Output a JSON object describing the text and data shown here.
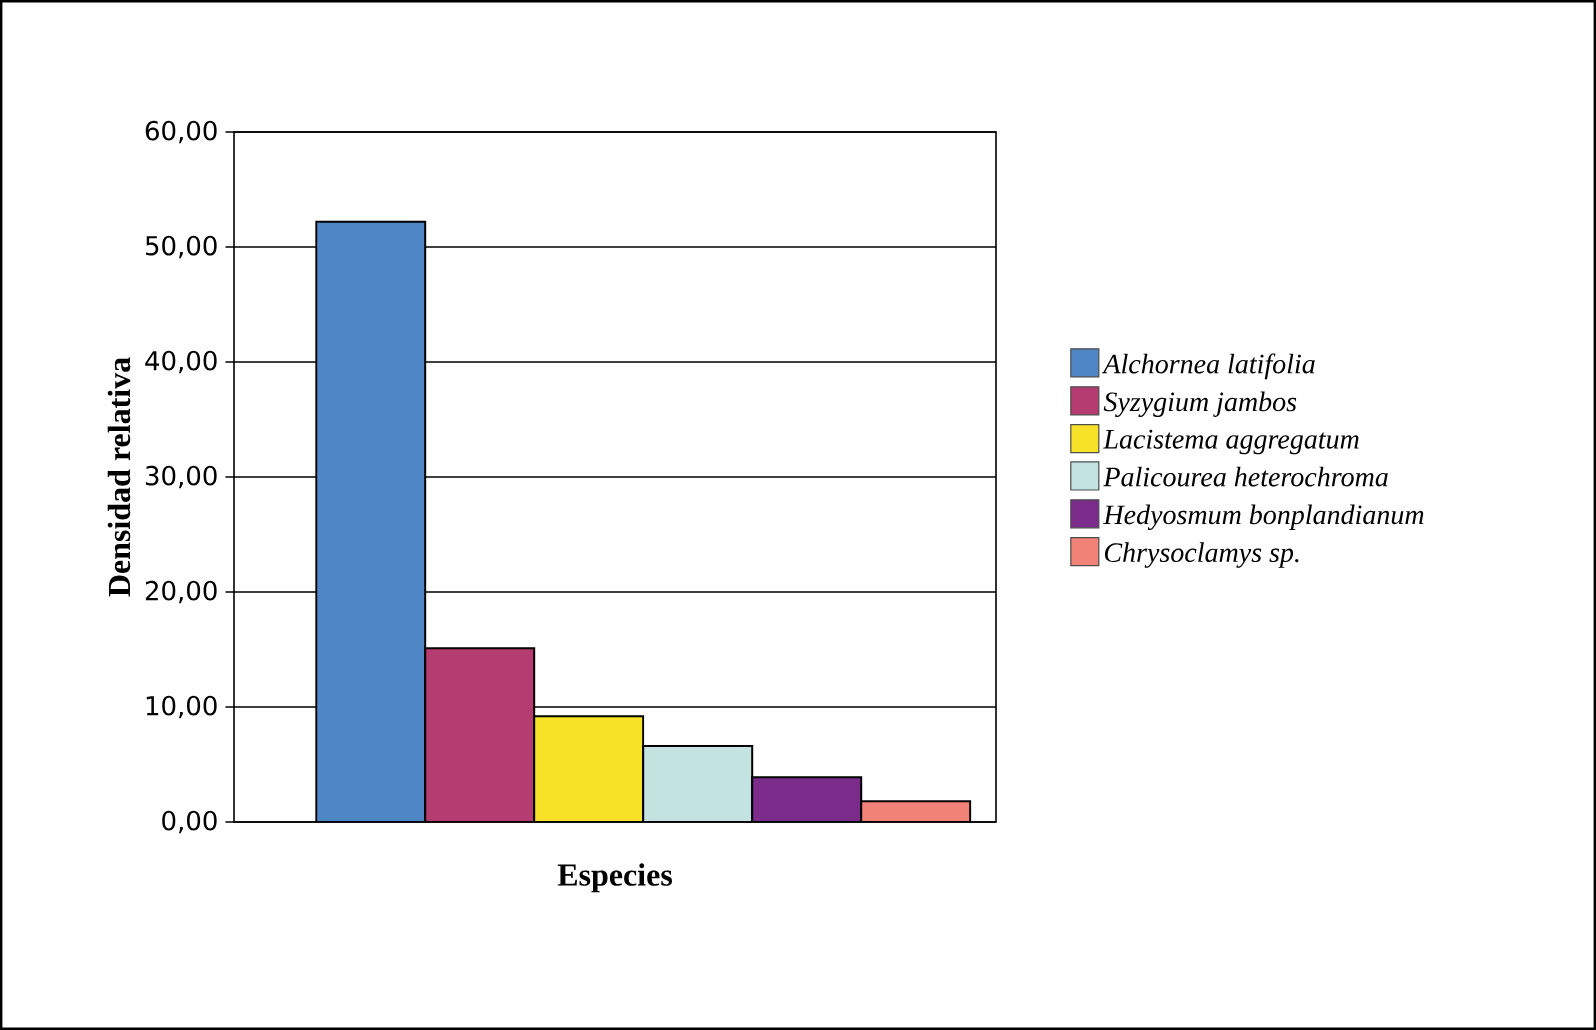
{
  "chart_data": {
    "type": "bar",
    "xlabel": "Especies",
    "ylabel": "Densidad relativa",
    "categories": [
      null
    ],
    "series": [
      {
        "name": "Alchornea latifolia",
        "color": "#4f86c6",
        "values": [
          52.2
        ]
      },
      {
        "name": "Syzygium jambos",
        "color": "#b43c70",
        "values": [
          15.1
        ]
      },
      {
        "name": "Lacistema aggregatum",
        "color": "#f8e228",
        "values": [
          9.2
        ]
      },
      {
        "name": "Palicourea heterochroma",
        "color": "#c3e3e0",
        "values": [
          6.6
        ]
      },
      {
        "name": "Hedyosmum bonplandianum",
        "color": "#7b2c8b",
        "values": [
          3.9
        ]
      },
      {
        "name": "Chrysoclamys sp.",
        "color": "#f08278",
        "values": [
          1.8
        ]
      }
    ],
    "ylim": [
      0,
      60
    ],
    "yticks": [
      {
        "value": 0,
        "label": "0,00"
      },
      {
        "value": 10,
        "label": "10,00"
      },
      {
        "value": 20,
        "label": "20,00"
      },
      {
        "value": 30,
        "label": "30,00"
      },
      {
        "value": 40,
        "label": "40,00"
      },
      {
        "value": 50,
        "label": "50,00"
      },
      {
        "value": 60,
        "label": "60,00"
      }
    ],
    "grid": "y",
    "legend": "right",
    "tick_labels": "y"
  }
}
